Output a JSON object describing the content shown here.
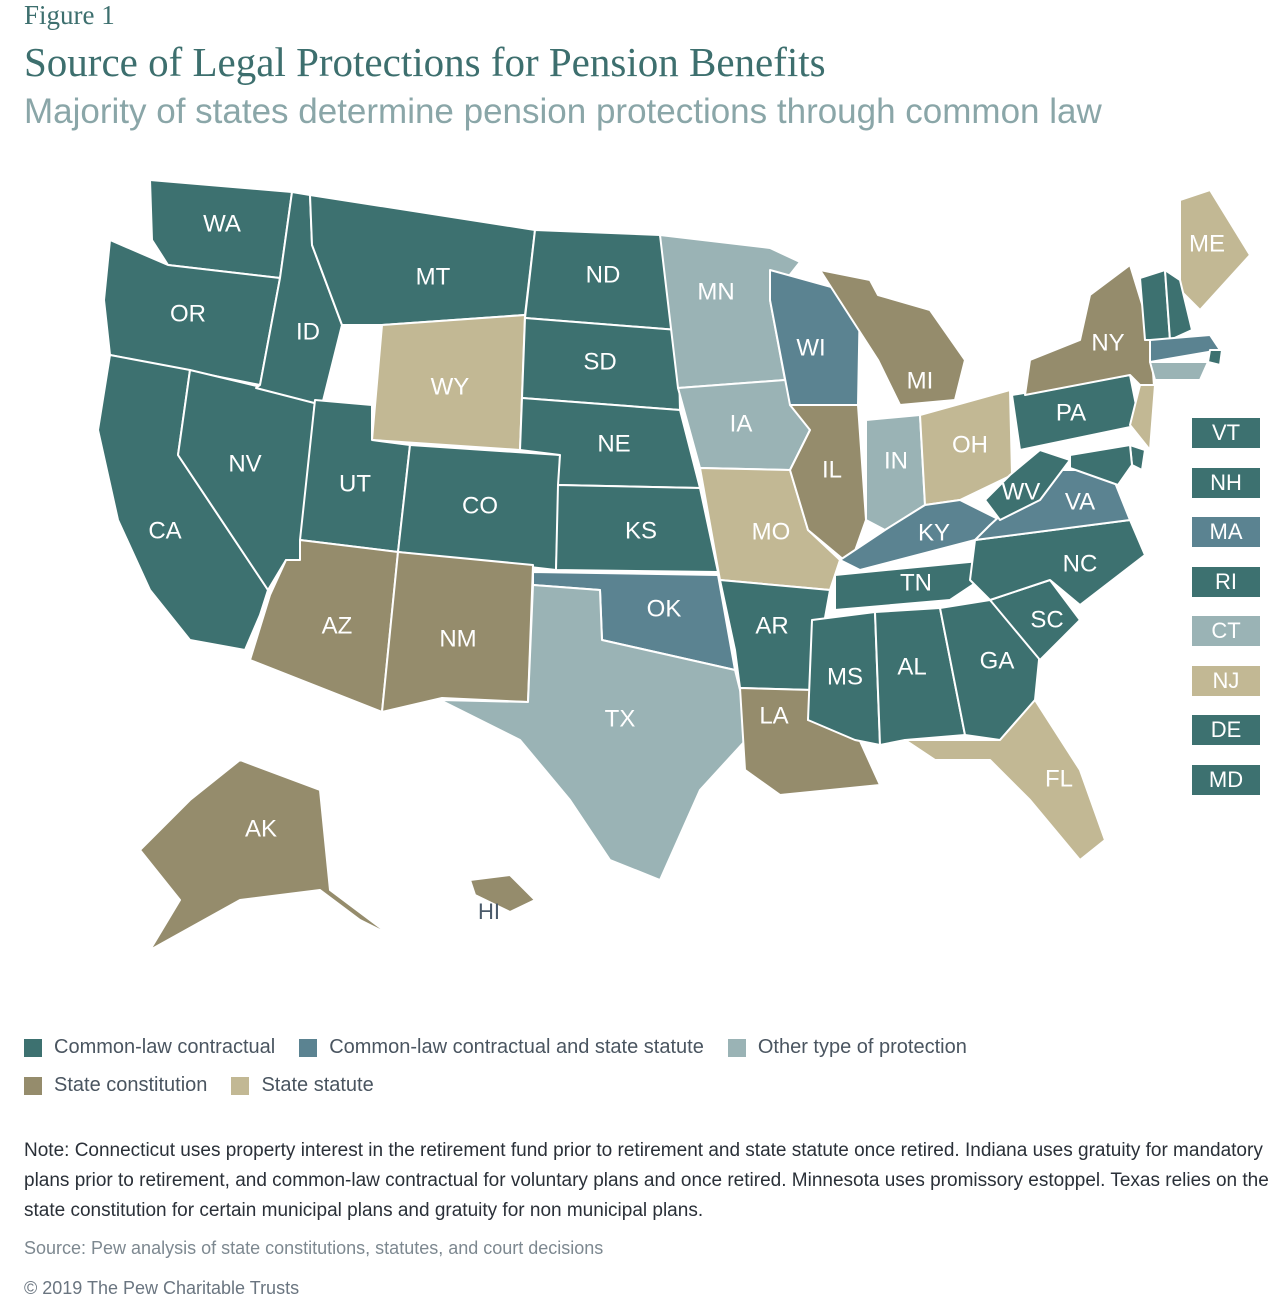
{
  "figure_label": "Figure 1",
  "title": "Source of Legal Protections for Pension Benefits",
  "subtitle": "Majority of states determine pension protections through common law",
  "colors": {
    "common_law_contractual": "#3d7170",
    "common_law_and_statute": "#5b8391",
    "other": "#9ab3b5",
    "state_constitution": "#958c6c",
    "state_statute": "#c2b894"
  },
  "states": {
    "WA": "common_law_contractual",
    "OR": "common_law_contractual",
    "CA": "common_law_contractual",
    "ID": "common_law_contractual",
    "NV": "common_law_contractual",
    "MT": "common_law_contractual",
    "WY": "state_statute",
    "UT": "common_law_contractual",
    "CO": "common_law_contractual",
    "AZ": "state_constitution",
    "NM": "state_constitution",
    "ND": "common_law_contractual",
    "SD": "common_law_contractual",
    "NE": "common_law_contractual",
    "KS": "common_law_contractual",
    "OK": "common_law_and_statute",
    "TX": "other",
    "MN": "other",
    "IA": "other",
    "MO": "state_statute",
    "AR": "common_law_contractual",
    "LA": "state_constitution",
    "WI": "common_law_and_statute",
    "IL": "state_constitution",
    "MI": "state_constitution",
    "IN": "other",
    "OH": "state_statute",
    "KY": "common_law_and_statute",
    "TN": "common_law_contractual",
    "MS": "common_law_contractual",
    "AL": "common_law_contractual",
    "GA": "common_law_contractual",
    "FL": "state_statute",
    "SC": "common_law_contractual",
    "NC": "common_law_contractual",
    "VA": "common_law_and_statute",
    "WV": "common_law_contractual",
    "PA": "common_law_contractual",
    "NY": "state_constitution",
    "ME": "state_statute",
    "AK": "state_constitution",
    "HI": "state_constitution"
  },
  "side_states": [
    {
      "abbr": "VT",
      "category": "common_law_contractual"
    },
    {
      "abbr": "NH",
      "category": "common_law_contractual"
    },
    {
      "abbr": "MA",
      "category": "common_law_and_statute"
    },
    {
      "abbr": "RI",
      "category": "common_law_contractual"
    },
    {
      "abbr": "CT",
      "category": "other"
    },
    {
      "abbr": "NJ",
      "category": "state_statute"
    },
    {
      "abbr": "DE",
      "category": "common_law_contractual"
    },
    {
      "abbr": "MD",
      "category": "common_law_contractual"
    }
  ],
  "legend": {
    "items": [
      {
        "key": "common_law_contractual",
        "label": "Common-law contractual"
      },
      {
        "key": "common_law_and_statute",
        "label": "Common-law contractual and state statute"
      },
      {
        "key": "other",
        "label": "Other type of protection"
      },
      {
        "key": "state_constitution",
        "label": "State constitution"
      },
      {
        "key": "state_statute",
        "label": "State statute"
      }
    ]
  },
  "note": "Note: Connecticut uses property interest in the retirement fund prior to retirement and state statute once retired. Indiana uses gratuity for mandatory plans prior to retirement, and common-law contractual for voluntary plans and once retired. Minnesota uses promissory estoppel. Texas relies on the state constitution for certain municipal plans and gratuity for non municipal plans.",
  "source": "Source: Pew analysis of state constitutions, statutes, and court decisions",
  "copyright": "© 2019 The Pew Charitable Trusts"
}
